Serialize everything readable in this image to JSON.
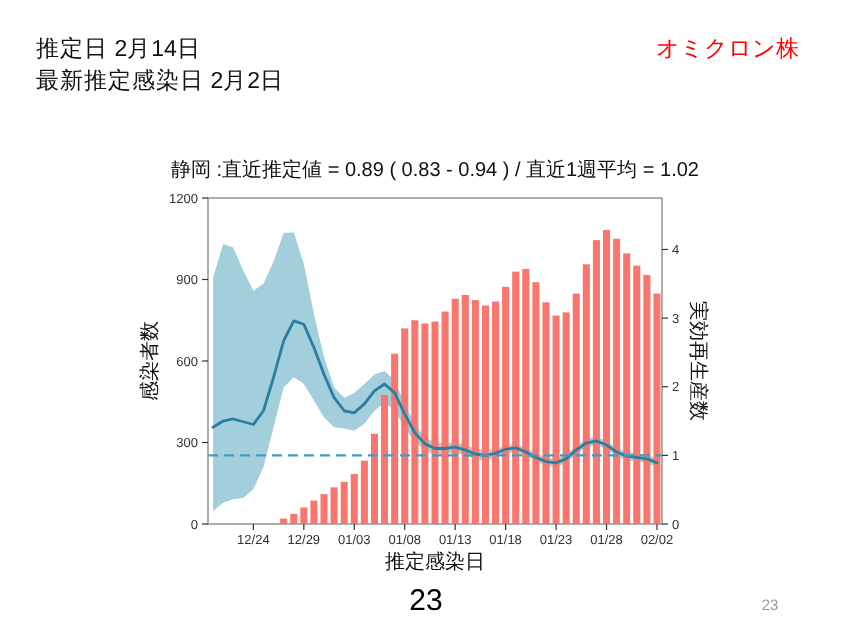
{
  "chart_data": {
    "type": "bar",
    "title": "静岡 :直近推定値 = 0.89 ( 0.83 - 0.94 ) / 直近1週平均 = 1.02",
    "xlabel": "推定感染日",
    "ylabel": "感染者数",
    "y2label": "実効再生産数",
    "annotations": [
      "推定日  2月14日",
      "最新推定感染日  2月2日",
      "オミクロン株",
      "23",
      "23"
    ],
    "categories": [
      null,
      null,
      null,
      null,
      "12/24",
      null,
      null,
      null,
      null,
      "12/29",
      null,
      null,
      null,
      null,
      "01/03",
      null,
      null,
      null,
      null,
      "01/08",
      null,
      null,
      null,
      null,
      "01/13",
      null,
      null,
      null,
      null,
      "01/18",
      null,
      null,
      null,
      null,
      "01/23",
      null,
      null,
      null,
      null,
      "01/28",
      null,
      null,
      null,
      null,
      "02/02"
    ],
    "series": [
      {
        "color": "#f8766d",
        "values": [
          null,
          null,
          null,
          null,
          null,
          null,
          null,
          20,
          37,
          61,
          86,
          110,
          135,
          155,
          184,
          233,
          332,
          475,
          627,
          720,
          750,
          738,
          745,
          782,
          829,
          843,
          824,
          804,
          819,
          873,
          929,
          939,
          890,
          816,
          767,
          779,
          848,
          956,
          1045,
          1082,
          1050,
          996,
          951,
          917,
          848
        ]
      },
      {
        "type": "line",
        "axis": "y2",
        "color": "#2a7f9e",
        "values": [
          1.41,
          1.5,
          1.53,
          1.49,
          1.45,
          1.65,
          2.14,
          2.67,
          2.96,
          2.91,
          2.57,
          2.18,
          1.84,
          1.65,
          1.62,
          1.75,
          1.94,
          2.04,
          1.91,
          1.6,
          1.33,
          1.17,
          1.1,
          1.1,
          1.12,
          1.08,
          1.02,
          1.0,
          1.03,
          1.09,
          1.11,
          1.05,
          0.97,
          0.91,
          0.89,
          0.95,
          1.08,
          1.18,
          1.21,
          1.15,
          1.05,
          0.99,
          0.97,
          0.95,
          0.89
        ],
        "lower": [
          0.19,
          0.31,
          0.36,
          0.38,
          0.51,
          0.83,
          1.41,
          1.99,
          2.14,
          2.04,
          1.8,
          1.55,
          1.41,
          1.39,
          1.36,
          1.46,
          1.65,
          1.77,
          1.65,
          1.41,
          1.19,
          1.07,
          1.02,
          1.02,
          1.04,
          1.0,
          0.94,
          0.92,
          0.97,
          1.03,
          1.05,
          0.99,
          0.91,
          0.85,
          0.83,
          0.89,
          1.02,
          1.12,
          1.15,
          1.09,
          0.99,
          0.93,
          0.91,
          0.89,
          0.83
        ],
        "upper": [
          3.59,
          4.08,
          4.03,
          3.69,
          3.4,
          3.5,
          3.83,
          4.24,
          4.25,
          3.79,
          3.06,
          2.43,
          1.99,
          1.84,
          1.91,
          2.04,
          2.18,
          2.23,
          2.09,
          1.75,
          1.46,
          1.26,
          1.19,
          1.18,
          1.19,
          1.16,
          1.1,
          1.08,
          1.09,
          1.15,
          1.17,
          1.11,
          1.03,
          0.97,
          0.95,
          1.01,
          1.14,
          1.24,
          1.27,
          1.21,
          1.11,
          1.05,
          1.03,
          1.01,
          0.95
        ]
      }
    ],
    "ylim": [
      0,
      1200
    ],
    "yticks": [
      0,
      300,
      600,
      900,
      1200
    ],
    "y2lim": [
      0,
      4.75
    ],
    "y2ticks": [
      0,
      1,
      2,
      3,
      4
    ],
    "ref_lines": [
      {
        "axis": "y2",
        "value": 1,
        "color": "#3f9ec0",
        "line_style": "dashed"
      }
    ]
  }
}
